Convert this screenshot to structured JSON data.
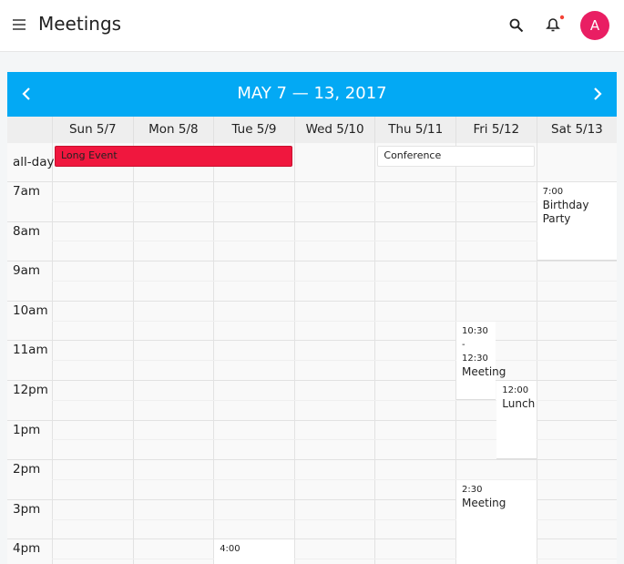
{
  "app_bar": {
    "title": "Meetings",
    "avatar": "A"
  },
  "calendar": {
    "title": "MAY 7 — 13, 2017",
    "days": [
      "Sun 5/7",
      "Mon 5/8",
      "Tue 5/9",
      "Wed 5/10",
      "Thu 5/11",
      "Fri 5/12",
      "Sat 5/13"
    ],
    "all_day_label": "all-day",
    "hours": [
      "7am",
      "8am",
      "9am",
      "10am",
      "11am",
      "12pm",
      "1pm",
      "2pm",
      "3pm",
      "4pm"
    ],
    "all_day_events": [
      {
        "title": "Long Event"
      },
      {
        "title": "Conference"
      }
    ],
    "events": [
      {
        "time": "7:00",
        "title": "Birthday Party"
      },
      {
        "time": "10:30 - 12:30",
        "title": "Meeting"
      },
      {
        "time": "12:00",
        "title": "Lunch"
      },
      {
        "time": "2:30",
        "title": "Meeting"
      },
      {
        "time": "4:00"
      }
    ]
  }
}
